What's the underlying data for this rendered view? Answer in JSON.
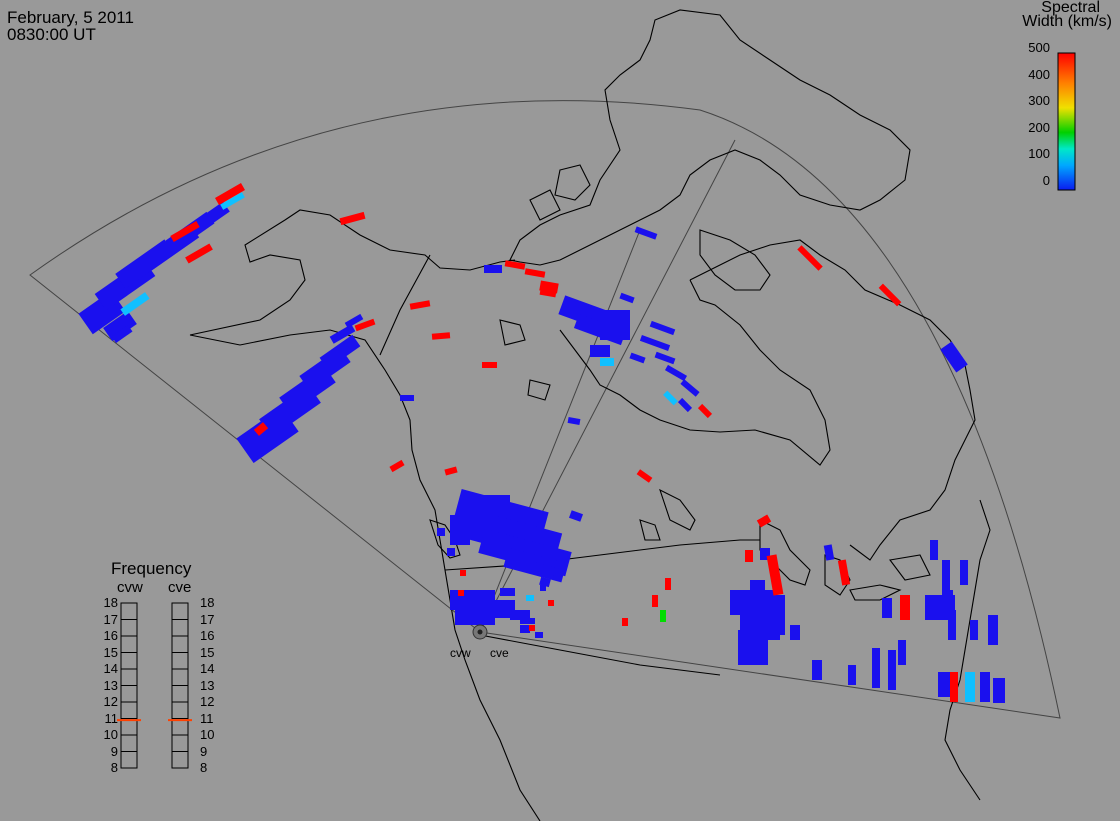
{
  "header": {
    "date": "February, 5 2011",
    "time": "0830:00 UT"
  },
  "colorbar": {
    "title_line1": "Spectral",
    "title_line2": "Width (km/s)",
    "ticks": [
      "500",
      "400",
      "300",
      "200",
      "100",
      "0"
    ],
    "range": [
      0,
      500
    ],
    "colors": [
      "#0a1cf0",
      "#00a8ff",
      "#00e8c8",
      "#00d000",
      "#f0e000",
      "#ff8000",
      "#ff0000"
    ]
  },
  "frequency": {
    "title": "Frequency",
    "radars": [
      {
        "name": "cvw",
        "value_mhz": 10.9
      },
      {
        "name": "cve",
        "value_mhz": 10.9
      }
    ],
    "ticks": [
      "18",
      "17",
      "16",
      "15",
      "14",
      "13",
      "12",
      "11",
      "10",
      "9",
      "8"
    ],
    "range": [
      8,
      18
    ],
    "marker_color": "#ff4000"
  },
  "sites": [
    {
      "name": "cvw"
    },
    {
      "name": "cve"
    }
  ],
  "colors": {
    "background": "#999999",
    "low_width": "#1a10ee",
    "high_width": "#ff0000",
    "mid_width": "#10c0ff",
    "green": "#00dd00",
    "lines": "#000000",
    "fov": "#444444"
  }
}
